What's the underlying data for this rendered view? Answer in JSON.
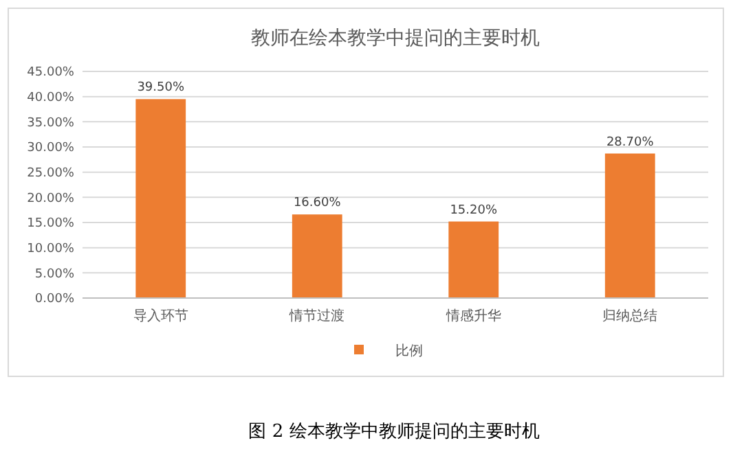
{
  "chart_data": {
    "type": "bar",
    "title": "教师在绘本教学中提问的主要时机",
    "categories": [
      "导入环节",
      "情节过渡",
      "情感升华",
      "归纳总结"
    ],
    "series": [
      {
        "name": "比例",
        "color": "#ed7d31",
        "values": [
          39.5,
          16.6,
          15.2,
          28.7
        ],
        "value_labels": [
          "39.50%",
          "16.60%",
          "15.20%",
          "28.70%"
        ]
      }
    ],
    "ylim": [
      0,
      45
    ],
    "yticks": [
      {
        "value": 0,
        "label": "0.00%"
      },
      {
        "value": 5,
        "label": "5.00%"
      },
      {
        "value": 10,
        "label": "10.00%"
      },
      {
        "value": 15,
        "label": "15.00%"
      },
      {
        "value": 20,
        "label": "20.00%"
      },
      {
        "value": 25,
        "label": "25.00%"
      },
      {
        "value": 30,
        "label": "30.00%"
      },
      {
        "value": 35,
        "label": "35.00%"
      },
      {
        "value": 40,
        "label": "40.00%"
      },
      {
        "value": 45,
        "label": "45.00%"
      }
    ],
    "grid": "y",
    "legend": "bottom",
    "annotations": [
      "图 2 绘本教学中教师提问的主要时机"
    ]
  }
}
